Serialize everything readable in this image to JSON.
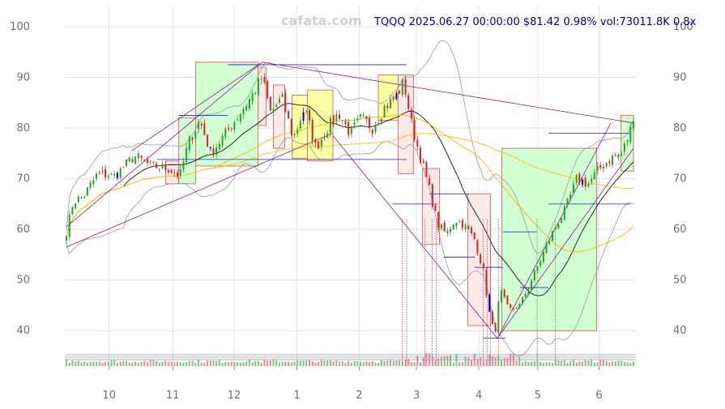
{
  "chart_data": {
    "type": "candlestick",
    "watermark": "cafata.com",
    "header": "TQQQ 2025.06.27 00:00:00 $81.42 0.98% vol:73011.8K 0.8x",
    "ylim": [
      33,
      104
    ],
    "yticks": [
      40,
      50,
      60,
      70,
      80,
      90,
      100
    ],
    "xticks": [
      {
        "label": "10",
        "t": 0.0753
      },
      {
        "label": "11",
        "t": 0.1876
      },
      {
        "label": "12",
        "t": 0.2958
      },
      {
        "label": "1",
        "t": 0.4066
      },
      {
        "label": "2",
        "t": 0.5163
      },
      {
        "label": "3",
        "t": 0.6173
      },
      {
        "label": "4",
        "t": 0.7271
      },
      {
        "label": "5",
        "t": 0.8312
      },
      {
        "label": "6",
        "t": 0.9393
      }
    ],
    "anchors": [
      {
        "t": 0.0,
        "p": 59.5
      },
      {
        "t": 0.012,
        "p": 65.5
      },
      {
        "t": 0.03,
        "p": 66.5
      },
      {
        "t": 0.055,
        "p": 71
      },
      {
        "t": 0.085,
        "p": 70.5
      },
      {
        "t": 0.12,
        "p": 74.5
      },
      {
        "t": 0.15,
        "p": 72.5
      },
      {
        "t": 0.18,
        "p": 72
      },
      {
        "t": 0.2,
        "p": 70.5
      },
      {
        "t": 0.215,
        "p": 77
      },
      {
        "t": 0.235,
        "p": 81.5
      },
      {
        "t": 0.255,
        "p": 75
      },
      {
        "t": 0.275,
        "p": 78
      },
      {
        "t": 0.3,
        "p": 82
      },
      {
        "t": 0.325,
        "p": 86
      },
      {
        "t": 0.345,
        "p": 90
      },
      {
        "t": 0.36,
        "p": 83
      },
      {
        "t": 0.38,
        "p": 86
      },
      {
        "t": 0.4,
        "p": 78
      },
      {
        "t": 0.42,
        "p": 84
      },
      {
        "t": 0.44,
        "p": 76
      },
      {
        "t": 0.46,
        "p": 80
      },
      {
        "t": 0.48,
        "p": 83
      },
      {
        "t": 0.5,
        "p": 79
      },
      {
        "t": 0.52,
        "p": 82
      },
      {
        "t": 0.54,
        "p": 80
      },
      {
        "t": 0.56,
        "p": 84
      },
      {
        "t": 0.58,
        "p": 86
      },
      {
        "t": 0.595,
        "p": 89
      },
      {
        "t": 0.61,
        "p": 80
      },
      {
        "t": 0.625,
        "p": 74
      },
      {
        "t": 0.64,
        "p": 68
      },
      {
        "t": 0.655,
        "p": 61
      },
      {
        "t": 0.67,
        "p": 59
      },
      {
        "t": 0.685,
        "p": 62
      },
      {
        "t": 0.7,
        "p": 61
      },
      {
        "t": 0.72,
        "p": 58
      },
      {
        "t": 0.735,
        "p": 52
      },
      {
        "t": 0.745,
        "p": 44
      },
      {
        "t": 0.755,
        "p": 39
      },
      {
        "t": 0.765,
        "p": 48
      },
      {
        "t": 0.78,
        "p": 44
      },
      {
        "t": 0.8,
        "p": 45
      },
      {
        "t": 0.82,
        "p": 50
      },
      {
        "t": 0.84,
        "p": 55
      },
      {
        "t": 0.86,
        "p": 60
      },
      {
        "t": 0.88,
        "p": 64
      },
      {
        "t": 0.9,
        "p": 70
      },
      {
        "t": 0.92,
        "p": 69
      },
      {
        "t": 0.94,
        "p": 72
      },
      {
        "t": 0.96,
        "p": 74
      },
      {
        "t": 0.98,
        "p": 75
      },
      {
        "t": 1.0,
        "p": 81.4
      }
    ],
    "rectangles": [
      {
        "t0": 0.175,
        "t1": 0.198,
        "p0": 69,
        "p1": 73.5,
        "fill": "#fce8e8",
        "stroke": "#e07070"
      },
      {
        "t0": 0.198,
        "t1": 0.228,
        "p0": 69,
        "p1": 82,
        "fill": "#ccffcc",
        "stroke": "#e07070"
      },
      {
        "t0": 0.228,
        "t1": 0.338,
        "p0": 72.5,
        "p1": 93,
        "fill": "#ccffcc",
        "stroke": "#e07070"
      },
      {
        "t0": 0.338,
        "t1": 0.352,
        "p0": 80.5,
        "p1": 92,
        "fill": "#fce8e8",
        "stroke": "#e07070"
      },
      {
        "t0": 0.365,
        "t1": 0.385,
        "p0": 76,
        "p1": 88.5,
        "fill": "#fce8e8",
        "stroke": "#e07070"
      },
      {
        "t0": 0.398,
        "t1": 0.425,
        "p0": 74,
        "p1": 86.5,
        "fill": "#ffff99",
        "stroke": "#e07070"
      },
      {
        "t0": 0.425,
        "t1": 0.47,
        "p0": 73.5,
        "p1": 87.5,
        "fill": "#ffff99",
        "stroke": "#e07070"
      },
      {
        "t0": 0.55,
        "t1": 0.585,
        "p0": 81.5,
        "p1": 90.5,
        "fill": "#ffff99",
        "stroke": "#e07070"
      },
      {
        "t0": 0.585,
        "t1": 0.612,
        "p0": 71,
        "p1": 90.5,
        "fill": "#fce8e8",
        "stroke": "#e07070"
      },
      {
        "t0": 0.628,
        "t1": 0.658,
        "p0": 57,
        "p1": 72,
        "fill": "#fce8e8",
        "stroke": "#e07070"
      },
      {
        "t0": 0.708,
        "t1": 0.748,
        "p0": 41,
        "p1": 67,
        "fill": "#fce8e8",
        "stroke": "#e07070"
      },
      {
        "t0": 0.768,
        "t1": 0.935,
        "p0": 40,
        "p1": 76,
        "fill": "#ccffcc",
        "stroke": "#e07070"
      },
      {
        "t0": 0.978,
        "t1": 1.0,
        "p0": 71.5,
        "p1": 82.5,
        "fill": "#ccffcc",
        "stroke": "#e07070"
      }
    ],
    "hlines": [
      {
        "t0": 0.198,
        "t1": 0.285,
        "p": 82.5
      },
      {
        "t0": 0.285,
        "t1": 0.6,
        "p": 92.5
      },
      {
        "t0": 0.16,
        "t1": 0.6,
        "p": 73.8
      },
      {
        "t0": 0.575,
        "t1": 0.655,
        "p": 65
      },
      {
        "t0": 0.64,
        "t1": 0.71,
        "p": 67
      },
      {
        "t0": 0.665,
        "t1": 0.72,
        "p": 54.5
      },
      {
        "t0": 0.72,
        "t1": 0.77,
        "p": 52.5
      },
      {
        "t0": 0.735,
        "t1": 0.775,
        "p": 38.5
      },
      {
        "t0": 0.77,
        "t1": 0.83,
        "p": 59.5
      },
      {
        "t0": 0.8,
        "t1": 0.85,
        "p": 48.5
      },
      {
        "t0": 0.85,
        "t1": 0.995,
        "p": 65
      },
      {
        "t0": 0.85,
        "t1": 0.995,
        "p": 79
      }
    ],
    "trendlines": [
      {
        "t0": 0.0,
        "p0": 60.5,
        "t1": 0.345,
        "p1": 93
      },
      {
        "t0": 0.0,
        "p0": 56.5,
        "t1": 0.47,
        "p1": 79
      },
      {
        "t0": 0.345,
        "p0": 93,
        "t1": 1.0,
        "p1": 81
      },
      {
        "t0": 0.115,
        "p0": 75.5,
        "t1": 0.345,
        "p1": 93
      },
      {
        "t0": 0.47,
        "p0": 78.5,
        "t1": 0.76,
        "p1": 38.5
      },
      {
        "t0": 0.76,
        "p0": 38.5,
        "t1": 1.0,
        "p1": 76
      },
      {
        "t0": 0.76,
        "p0": 38.5,
        "t1": 0.96,
        "p1": 81
      }
    ],
    "vlines": [
      {
        "t": 0.592,
        "color": "#d04040"
      },
      {
        "t": 0.6,
        "color": "#d04040"
      },
      {
        "t": 0.632,
        "color": "#d04040"
      },
      {
        "t": 0.645,
        "color": "#d04040"
      },
      {
        "t": 0.652,
        "color": "#d04040"
      },
      {
        "t": 0.735,
        "color": "#d04040"
      },
      {
        "t": 0.742,
        "color": "#d04040"
      },
      {
        "t": 0.748,
        "color": "#d04040"
      },
      {
        "t": 0.762,
        "color": "#d04040"
      },
      {
        "t": 0.83,
        "color": "#30a030"
      },
      {
        "t": 0.862,
        "color": "#30a030"
      }
    ],
    "colors": {
      "up": "#2ca02c",
      "down": "#d62728",
      "mark": "#0000cc",
      "ma_fast": "#111111",
      "ma_slow": "#f2b705",
      "ma_long": "#f5c400",
      "band": "#999999",
      "trend": "#8b1a8b",
      "hline": "#1f1fcf"
    }
  }
}
